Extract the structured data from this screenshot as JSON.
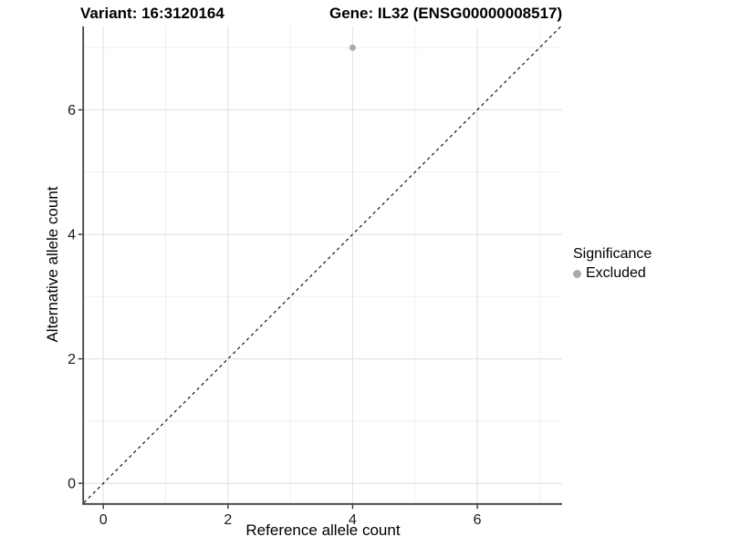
{
  "figure": {
    "title_left": "Variant: 16:3120164",
    "title_right": "Gene: IL32 (ENSG00000008517)"
  },
  "chart_data": {
    "type": "scatter",
    "title": "Variant: 16:3120164    Gene: IL32 (ENSG00000008517)",
    "xlabel": "Reference allele count",
    "ylabel": "Alternative allele count",
    "xlim": [
      -0.31,
      7.36
    ],
    "ylim": [
      -0.32,
      7.34
    ],
    "x_ticks": [
      0,
      2,
      4,
      6
    ],
    "y_ticks": [
      0,
      2,
      4,
      6
    ],
    "x_minor_gridlines": [
      1,
      3,
      5,
      7
    ],
    "y_minor_gridlines": [
      1,
      3,
      5,
      7
    ],
    "grid": true,
    "series": [
      {
        "name": "Excluded",
        "points": [
          {
            "x": 4,
            "y": 7
          }
        ]
      }
    ],
    "reference_line": {
      "type": "identity",
      "slope": 1,
      "intercept": 0,
      "style": "dashed"
    },
    "legend": {
      "title": "Significance",
      "position": "right",
      "items": [
        {
          "label": "Excluded",
          "color": "#ababab"
        }
      ]
    }
  },
  "colors": {
    "background": "#ffffff",
    "panel_background": "#ffffff",
    "grid_major": "#e4e4e4",
    "grid_minor": "#f0f0f0",
    "axis_line": "#404040",
    "tick_mark": "#333333",
    "tick_label": "#1a1a1a",
    "reference_line": "#000000",
    "point": "#ababab",
    "title_text": "#000000"
  }
}
